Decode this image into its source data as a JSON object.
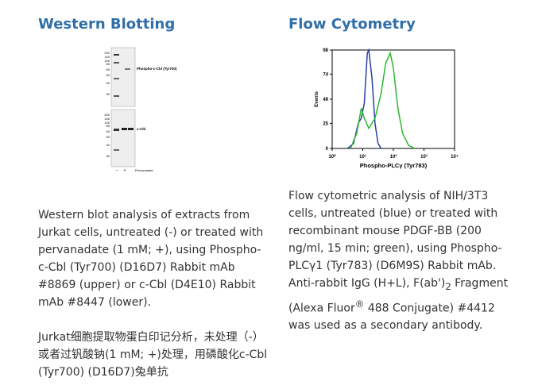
{
  "left": {
    "title": "Western Blotting",
    "blot": {
      "upper_markers": [
        "200",
        "140",
        "100",
        "80",
        "60",
        "50",
        "40",
        "30"
      ],
      "lower_markers": [
        "200",
        "140",
        "100",
        "80",
        "60",
        "50",
        "40",
        "30"
      ],
      "upper_label": "Phospho-c-Cbl (Tyr700)",
      "lower_label": "c-Cbl",
      "lanes": [
        "–",
        "+"
      ],
      "treatment": "Pervanadate"
    },
    "caption": "Western blot analysis of extracts from Jurkat cells, untreated (-) or treated with pervanadate (1 mM; +), using Phospho-c-Cbl (Tyr700) (D16D7) Rabbit mAb #8869 (upper) or c-Cbl (D4E10) Rabbit mAb #8447 (lower).",
    "caption_cn": "Jurkat细胞提取物蛋白印记分析，未处理（-）或者过钒酸钠(1 mM; +)处理，用磷酸化c-Cbl (Tyr700) (D16D7)兔单抗"
  },
  "right": {
    "title": "Flow Cytometry",
    "chart_data": {
      "type": "line",
      "ylabel": "Events",
      "xlabel": "Phospho-PLCγ (Tyr783)",
      "log_x": true,
      "xlim": [
        1,
        10000
      ],
      "xticks": [
        {
          "value": 1,
          "label": "10⁰"
        },
        {
          "value": 10,
          "label": "10¹"
        },
        {
          "value": 100,
          "label": "10²"
        },
        {
          "value": 1000,
          "label": "10³"
        },
        {
          "value": 10000,
          "label": "10⁴"
        }
      ],
      "ylim": [
        0,
        98
      ],
      "yticks": [
        0,
        25,
        49,
        74,
        98
      ],
      "series": [
        {
          "color": "#2b3fa6",
          "x": [
            3.2,
            5,
            7.1,
            8.9,
            11.2,
            14.1,
            15.8,
            20,
            25.1,
            31.6,
            39.8
          ],
          "values": [
            0,
            5,
            25,
            30,
            45,
            95,
            98,
            70,
            25,
            5,
            0
          ]
        },
        {
          "color": "#2fb52f",
          "x": [
            4,
            6.3,
            8.9,
            11.2,
            15.8,
            25.1,
            39.8,
            56.2,
            79.4,
            100,
            141,
            200,
            316,
            501
          ],
          "values": [
            0,
            15,
            40,
            30,
            20,
            30,
            55,
            85,
            95,
            80,
            40,
            15,
            3,
            0
          ]
        }
      ]
    },
    "caption": {
      "part1": "Flow cytometric analysis of NIH/3T3 cells, untreated (blue) or treated with recombinant mouse PDGF-BB (200 ng/ml, 15 min; green), using Phospho-PLCγ1 (Tyr783) (D6M9S) Rabbit mAb. Anti-rabbit IgG (H+L), F(ab')",
      "sub": "2",
      "part2": " Fragment (Alexa Fluor",
      "sup": "®",
      "part3": " 488 Conjugate) #4412 was used as a secondary antibody."
    }
  }
}
